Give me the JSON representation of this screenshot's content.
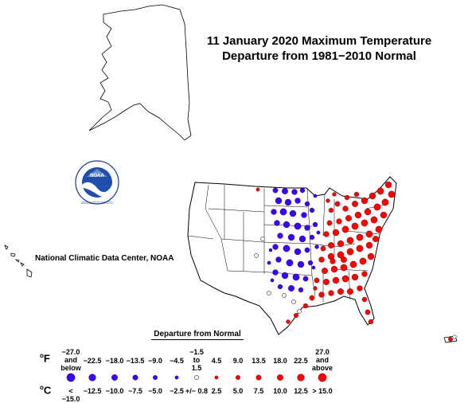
{
  "title_line1": "11 January 2020 Maximum Temperature",
  "title_line2": "Departure from 1981−2010 Normal",
  "credit": "National Climatic Data Center, NOAA",
  "noaa_logo_text": "NOAA",
  "noaa_ring_text": "NATIONAL OCEANIC AND ATMOSPHERIC ADMINISTRATION • U.S. DEPARTMENT OF COMMERCE",
  "legend": {
    "title": "Departure from Normal",
    "f_unit": "F",
    "c_unit": "C",
    "degree": "o",
    "f_labels": [
      "−27.0",
      "−22.5",
      "−18.0",
      "−13.5",
      "−9.0",
      "−4.5",
      "−1.5",
      "4.5",
      "9.0",
      "13.5",
      "18.0",
      "22.5",
      "27.0"
    ],
    "f_sub1": [
      "and",
      "",
      "",
      "",
      "",
      "",
      "to",
      "",
      "",
      "",
      "",
      "",
      "and"
    ],
    "f_sub2": [
      "below",
      "",
      "",
      "",
      "",
      "",
      "1.5",
      "",
      "",
      "",
      "",
      "",
      "above"
    ],
    "c_labels": [
      "< −15.0",
      "−12.5",
      "−10.0",
      "−7.5",
      "−5.0",
      "−2.5",
      "+/− 0.8",
      "2.5",
      "5.0",
      "7.5",
      "10.0",
      "12.5",
      "> 15.0"
    ],
    "symbol_colors": [
      "#3b00ff",
      "#3b00ff",
      "#3b00ff",
      "#3b00ff",
      "#3b00ff",
      "#3b00ff",
      "#ffffff",
      "#ff0000",
      "#ff0000",
      "#ff0000",
      "#ff0000",
      "#ff0000",
      "#ff0000"
    ],
    "symbol_levels": [
      6,
      5,
      4,
      3,
      2,
      1,
      0,
      1,
      2,
      3,
      4,
      5,
      6
    ]
  },
  "colors": {
    "cold": "#3b00ff",
    "warm": "#ff0000",
    "neutral": "#ffffff",
    "outline": "#000000"
  }
}
